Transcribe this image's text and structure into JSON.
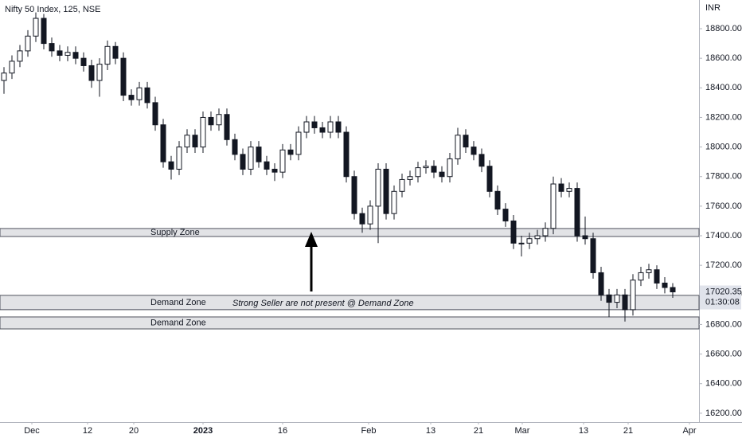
{
  "chart_data": {
    "type": "candlestick",
    "title": "Nifty 50 Index, 125, NSE",
    "currency": "INR",
    "up_color": "#ffffff",
    "down_color": "#131722",
    "outline_color": "#131722",
    "open": [
      18450,
      18500,
      18580,
      18650,
      18750,
      18870,
      18700,
      18650,
      18620,
      18640,
      18600,
      18550,
      18450,
      18560,
      18680,
      18600,
      18350,
      18320,
      18400,
      18300,
      18150,
      17900,
      17850,
      18000,
      18080,
      18000,
      18200,
      18150,
      18220,
      18050,
      17950,
      17850,
      18000,
      17900,
      17850,
      17830,
      17980,
      17950,
      18100,
      18170,
      18130,
      18100,
      18170,
      18100,
      17800,
      17550,
      17480,
      17600,
      17850,
      17550,
      17700,
      17780,
      17800,
      17860,
      17870,
      17830,
      17800,
      17920,
      18080,
      18000,
      17950,
      17870,
      17700,
      17580,
      17500,
      17350,
      17350,
      17380,
      17400,
      17450,
      17750,
      17700,
      17720,
      17400,
      17380,
      17150,
      17000,
      16950,
      17000,
      16900,
      17100,
      17150,
      17170,
      17080,
      17050
    ],
    "high": [
      18540,
      18620,
      18690,
      18790,
      18910,
      18900,
      18740,
      18690,
      18680,
      18680,
      18640,
      18590,
      18600,
      18720,
      18710,
      18640,
      18390,
      18440,
      18440,
      18340,
      18190,
      17940,
      18040,
      18120,
      18120,
      18240,
      18240,
      18260,
      18260,
      18090,
      17990,
      18040,
      18040,
      17940,
      17890,
      18020,
      18020,
      18140,
      18210,
      18210,
      18170,
      18210,
      18210,
      18140,
      17840,
      17590,
      17640,
      17890,
      17890,
      17740,
      17820,
      17840,
      17900,
      17910,
      17910,
      17870,
      17960,
      18130,
      18120,
      18040,
      17990,
      17910,
      17740,
      17620,
      17540,
      17400,
      17420,
      17440,
      17490,
      17800,
      17790,
      17760,
      17760,
      17530,
      17420,
      17190,
      17040,
      17040,
      17040,
      17140,
      17190,
      17210,
      17200,
      17120,
      17080
    ],
    "low": [
      18360,
      18460,
      18540,
      18610,
      18710,
      18660,
      18610,
      18580,
      18580,
      18560,
      18510,
      18400,
      18340,
      18520,
      18560,
      18310,
      18280,
      18280,
      18260,
      18110,
      17860,
      17780,
      17810,
      17960,
      17960,
      17960,
      18110,
      18110,
      18010,
      17910,
      17810,
      17810,
      17860,
      17810,
      17770,
      17790,
      17910,
      17910,
      18060,
      18090,
      18060,
      18060,
      18060,
      17760,
      17510,
      17420,
      17440,
      17350,
      17510,
      17510,
      17660,
      17740,
      17760,
      17820,
      17790,
      17760,
      17760,
      17880,
      17960,
      17910,
      17830,
      17660,
      17540,
      17460,
      17310,
      17260,
      17310,
      17340,
      17360,
      17410,
      17660,
      17660,
      17360,
      17340,
      17110,
      16960,
      16850,
      16910,
      16820,
      16860,
      17060,
      17110,
      17040,
      17010,
      16980
    ],
    "close": [
      18500,
      18580,
      18650,
      18750,
      18870,
      18700,
      18650,
      18620,
      18640,
      18600,
      18550,
      18450,
      18560,
      18680,
      18600,
      18350,
      18320,
      18400,
      18300,
      18150,
      17900,
      17850,
      18000,
      18080,
      18000,
      18200,
      18150,
      18220,
      18050,
      17950,
      17850,
      18000,
      17900,
      17850,
      17830,
      17980,
      17950,
      18100,
      18170,
      18130,
      18100,
      18170,
      18100,
      17800,
      17550,
      17480,
      17600,
      17850,
      17550,
      17700,
      17780,
      17800,
      17860,
      17870,
      17830,
      17800,
      17920,
      18080,
      18000,
      17950,
      17870,
      17700,
      17580,
      17500,
      17350,
      17350,
      17380,
      17400,
      17450,
      17750,
      17700,
      17720,
      17400,
      17380,
      17150,
      17000,
      16950,
      17000,
      16900,
      17100,
      17150,
      17170,
      17080,
      17050,
      17020.35
    ],
    "countdown": "01:30:08",
    "xlim": [
      -0.5,
      87.3
    ],
    "xticks": [
      {
        "value": 3.5,
        "label": "Dec"
      },
      {
        "value": 10.5,
        "label": "12"
      },
      {
        "value": 16.3,
        "label": "20"
      },
      {
        "value": 25,
        "label": "2023"
      },
      {
        "value": 35,
        "label": "16"
      },
      {
        "value": 45.8,
        "label": "Feb"
      },
      {
        "value": 53.6,
        "label": "13"
      },
      {
        "value": 59.6,
        "label": "21"
      },
      {
        "value": 65.1,
        "label": "Mar"
      },
      {
        "value": 72.8,
        "label": "13"
      },
      {
        "value": 78.4,
        "label": "21"
      },
      {
        "value": 86.1,
        "label": "Apr"
      }
    ],
    "ylim": [
      16140,
      18994
    ],
    "yticks": [
      {
        "value": 16200,
        "label": "16200.00"
      },
      {
        "value": 16400,
        "label": "16400.00"
      },
      {
        "value": 16600,
        "label": "16600.00"
      },
      {
        "value": 16800,
        "label": "16800.00"
      },
      {
        "value": 17000,
        "label": "17000.00"
      },
      {
        "value": 17200,
        "label": "17200.00"
      },
      {
        "value": 17400,
        "label": "17400.00"
      },
      {
        "value": 17600,
        "label": "17600.00"
      },
      {
        "value": 17800,
        "label": "17800.00"
      },
      {
        "value": 18000,
        "label": "18000.00"
      },
      {
        "value": 18200,
        "label": "18200.00"
      },
      {
        "value": 18400,
        "label": "18400.00"
      },
      {
        "value": 18600,
        "label": "18600.00"
      },
      {
        "value": 18800,
        "label": "18800.00"
      }
    ],
    "zones": [
      {
        "label": "Supply Zone",
        "top": 17449,
        "bottom": 17395
      },
      {
        "label": "Demand Zone",
        "top": 16997,
        "bottom": 16900
      },
      {
        "label": "Demand Zone",
        "top": 16851,
        "bottom": 16770
      }
    ],
    "annotation": "Strong Seller are not present @ Demand Zone"
  }
}
